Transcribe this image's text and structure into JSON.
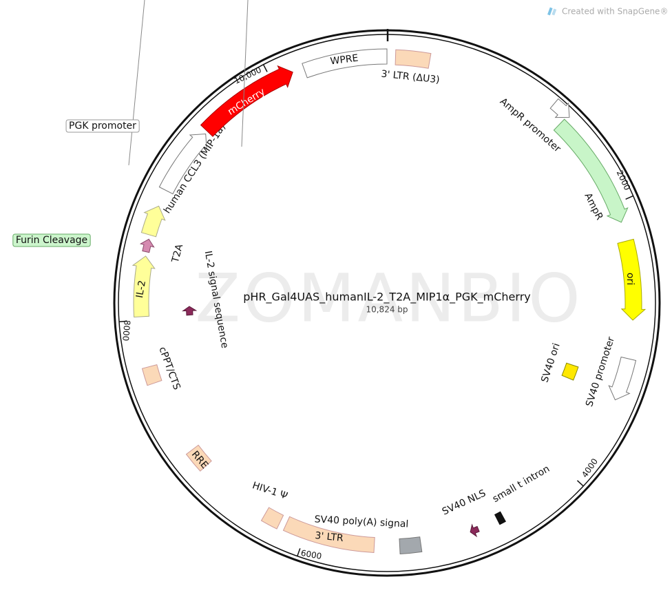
{
  "credit": "Created with SnapGene®",
  "watermark": "ZOMANBIO",
  "title": "pHR_Gal4UAS_humanIL-2_T2A_MIP1α_PGK_mCherry",
  "length": "10,824 bp",
  "ticks": [
    "10,000",
    "2000",
    "4000",
    "6000",
    "8000"
  ],
  "features": [
    {
      "label": "WPRE"
    },
    {
      "label": "3' LTR (ΔU3)"
    },
    {
      "label": "AmpR promoter"
    },
    {
      "label": "AmpR"
    },
    {
      "label": "ori"
    },
    {
      "label": "SV40 ori"
    },
    {
      "label": "SV40 promoter"
    },
    {
      "label": "small t intron"
    },
    {
      "label": "SV40 NLS"
    },
    {
      "label": "SV40 poly(A) signal"
    },
    {
      "label": "3' LTR"
    },
    {
      "label": "HIV-1 Ψ"
    },
    {
      "label": "RRE"
    },
    {
      "label": "cPPT/CTS"
    },
    {
      "label": "IL-2 signal sequence"
    },
    {
      "label": "IL-2"
    },
    {
      "label": "T2A"
    },
    {
      "label": "human CCL3 (MIP-1a)"
    },
    {
      "label": "mCherry"
    },
    {
      "label": "PGK promoter"
    },
    {
      "label": "Furin Cleavage"
    }
  ]
}
